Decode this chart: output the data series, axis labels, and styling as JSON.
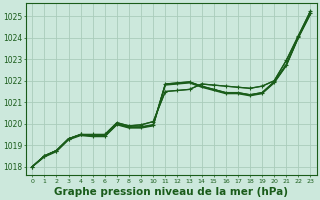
{
  "background_color": "#cce8dc",
  "grid_color": "#aaccbb",
  "line_color": "#1a5c1a",
  "title": "Graphe pression niveau de la mer (hPa)",
  "title_fontsize": 7.5,
  "ylim": [
    1017.6,
    1025.6
  ],
  "xlim": [
    -0.5,
    23.5
  ],
  "yticks": [
    1018,
    1019,
    1020,
    1021,
    1022,
    1023,
    1024,
    1025
  ],
  "xticks": [
    0,
    1,
    2,
    3,
    4,
    5,
    6,
    7,
    8,
    9,
    10,
    11,
    12,
    13,
    14,
    15,
    16,
    17,
    18,
    19,
    20,
    21,
    22,
    23
  ],
  "series_main": [
    1018.0,
    1018.5,
    1018.75,
    1019.3,
    1019.5,
    1019.45,
    1019.45,
    1020.0,
    1019.85,
    1019.85,
    1019.95,
    1021.85,
    1021.9,
    1021.95,
    1021.75,
    1021.6,
    1021.45,
    1021.45,
    1021.35,
    1021.45,
    1021.95,
    1022.75,
    1024.05,
    1025.15
  ],
  "series_upper": [
    1018.0,
    1018.5,
    1018.75,
    1019.3,
    1019.5,
    1019.5,
    1019.5,
    1020.05,
    1019.9,
    1019.95,
    1020.1,
    1021.5,
    1021.55,
    1021.6,
    1021.85,
    1021.8,
    1021.75,
    1021.7,
    1021.65,
    1021.75,
    1022.0,
    1022.95,
    1024.1,
    1025.25
  ],
  "series_lower": [
    1018.0,
    1018.45,
    1018.7,
    1019.25,
    1019.45,
    1019.4,
    1019.4,
    1019.95,
    1019.8,
    1019.8,
    1019.9,
    1021.8,
    1021.85,
    1021.9,
    1021.7,
    1021.55,
    1021.4,
    1021.4,
    1021.3,
    1021.4,
    1021.9,
    1022.7,
    1024.0,
    1025.1
  ],
  "series_mid1": [
    1018.0,
    1018.5,
    1018.75,
    1019.28,
    1019.48,
    1019.43,
    1019.43,
    1019.98,
    1019.83,
    1019.83,
    1019.93,
    1021.83,
    1021.88,
    1021.93,
    1021.73,
    1021.58,
    1021.43,
    1021.43,
    1021.33,
    1021.43,
    1021.93,
    1022.73,
    1024.03,
    1025.13
  ],
  "marker1_x": [
    0,
    1,
    2,
    3,
    4,
    5,
    6,
    7,
    8,
    9,
    10,
    11,
    12,
    13,
    14,
    15,
    16,
    17,
    18,
    19,
    20,
    21,
    22,
    23
  ],
  "marker1_y": [
    1018.0,
    1018.5,
    1018.75,
    1019.3,
    1019.5,
    1019.45,
    1019.45,
    1020.0,
    1019.85,
    1019.85,
    1019.95,
    1021.85,
    1021.9,
    1021.95,
    1021.75,
    1021.6,
    1021.45,
    1021.45,
    1021.35,
    1021.45,
    1021.95,
    1022.75,
    1024.05,
    1025.15
  ],
  "marker2_x": [
    0,
    1,
    2,
    3,
    4,
    5,
    6,
    7,
    8,
    9,
    10,
    11,
    12,
    13,
    14,
    15,
    16,
    17,
    18,
    19,
    20,
    21,
    22,
    23
  ],
  "marker2_y": [
    1018.0,
    1018.5,
    1018.75,
    1019.3,
    1019.5,
    1019.5,
    1019.5,
    1020.05,
    1019.9,
    1019.95,
    1020.1,
    1021.5,
    1021.55,
    1021.6,
    1021.85,
    1021.8,
    1021.75,
    1021.7,
    1021.65,
    1021.75,
    1022.0,
    1022.95,
    1024.1,
    1025.25
  ]
}
